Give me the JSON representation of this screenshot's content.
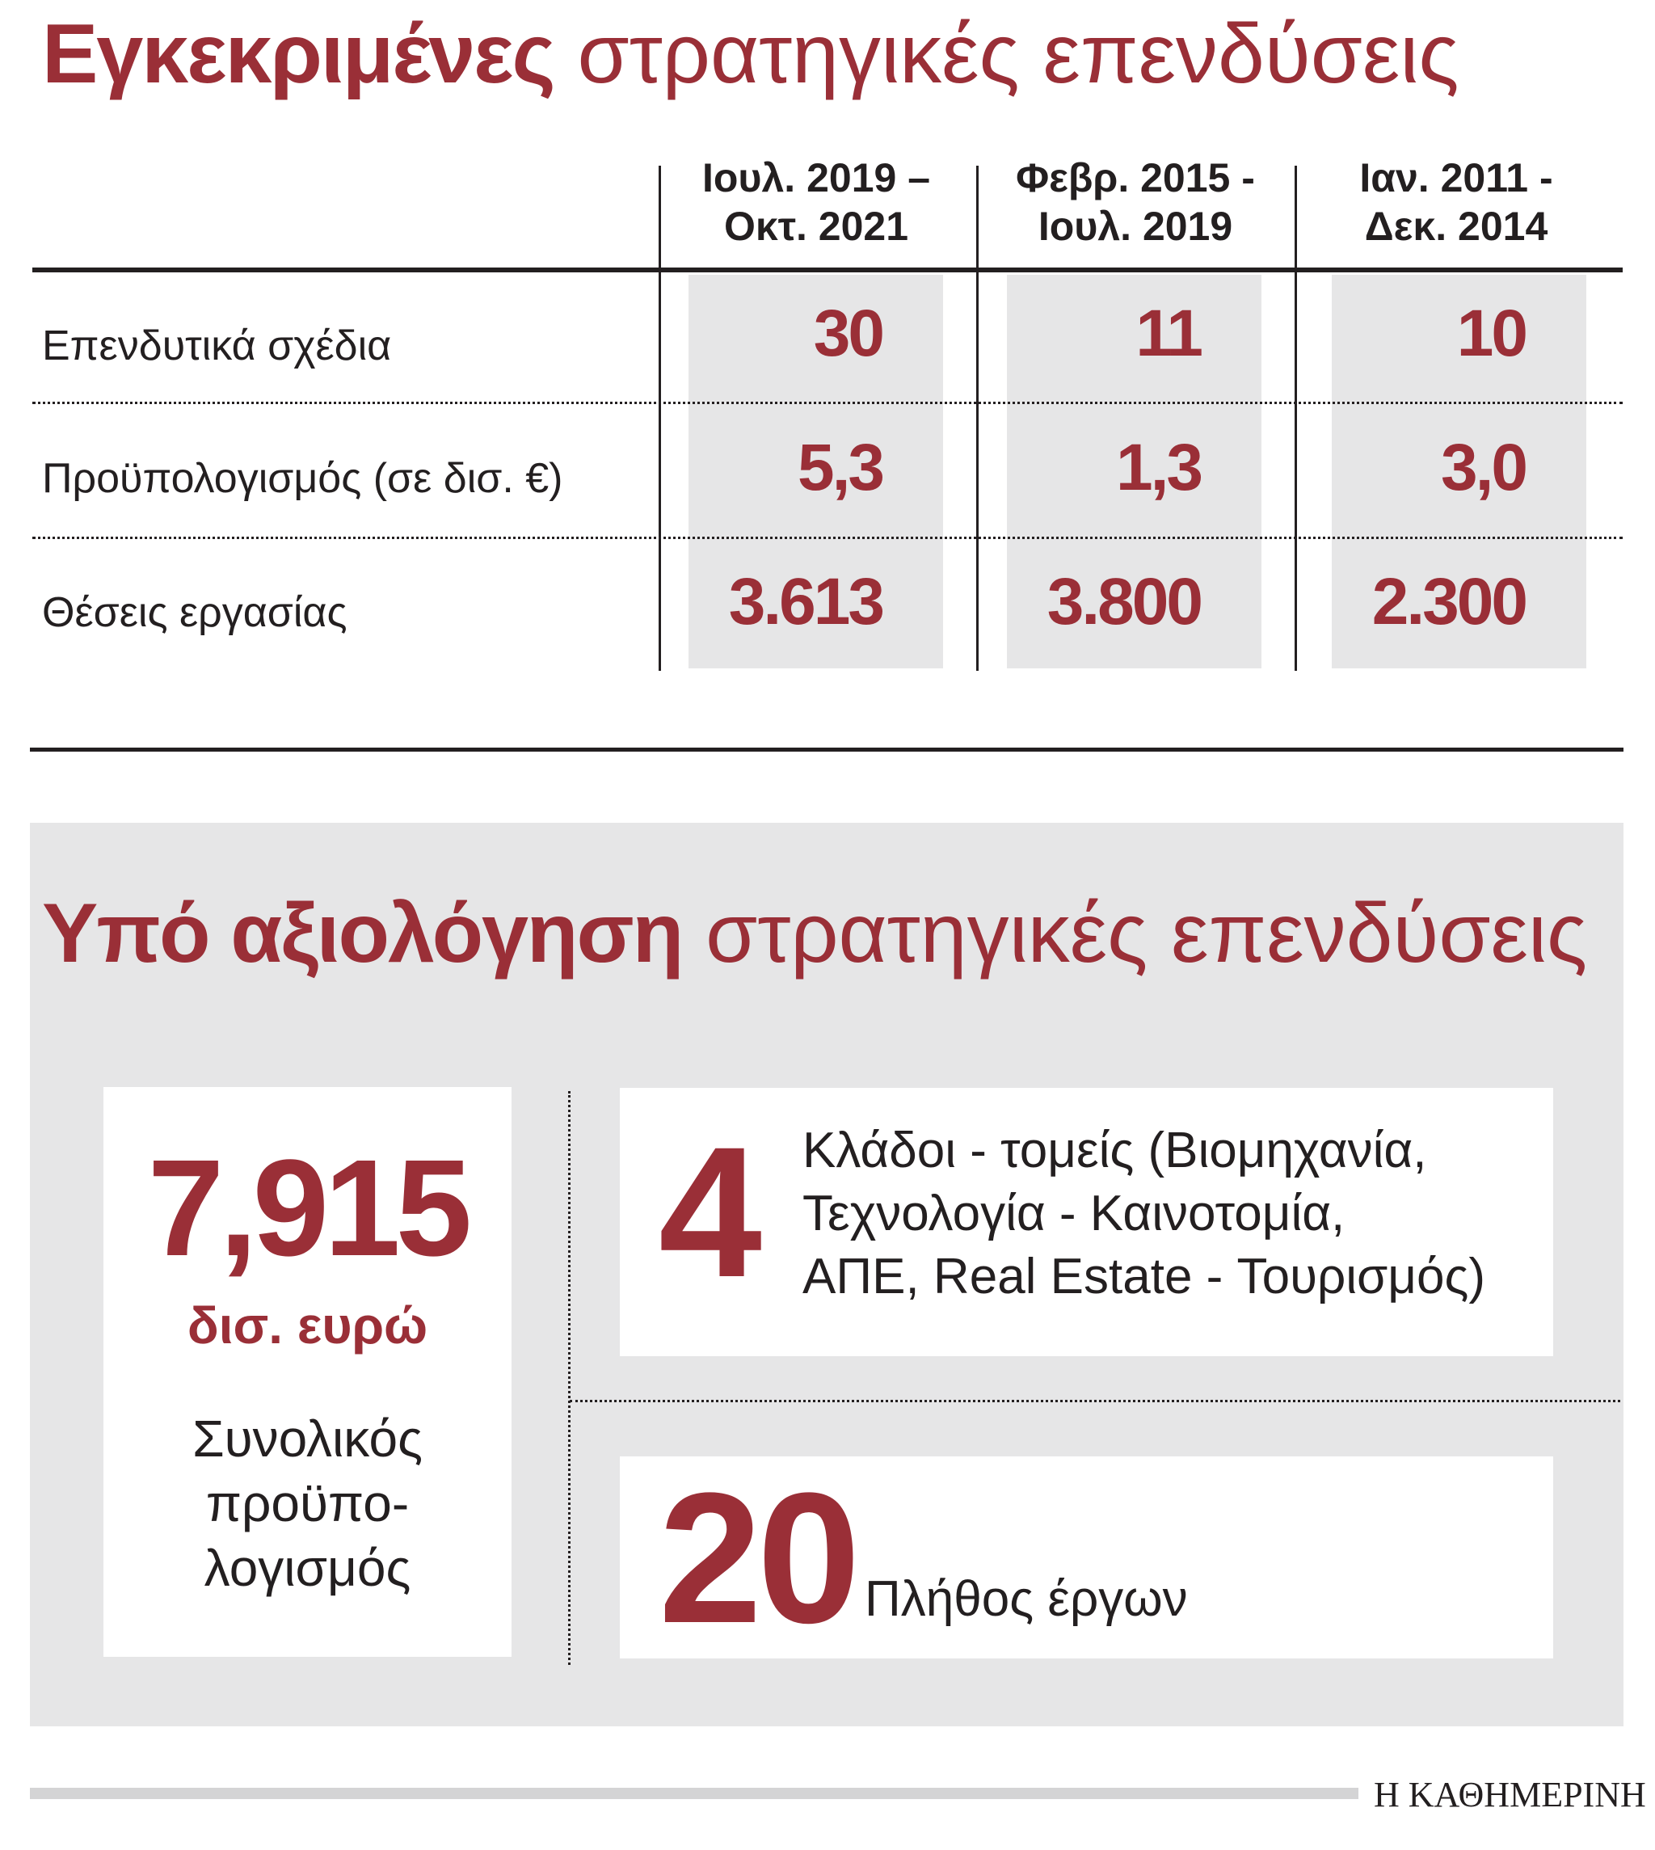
{
  "approved": {
    "title_bold": "Εγκεκριμένες",
    "title_rest": "στρατηγικές επενδύσεις",
    "columns": [
      {
        "line1": "Ιουλ. 2019 –",
        "line2": "Οκτ. 2021"
      },
      {
        "line1": "Φεβρ. 2015 -",
        "line2": "Ιουλ. 2019"
      },
      {
        "line1": "Ιαν. 2011 -",
        "line2": "Δεκ. 2014"
      }
    ],
    "rows": [
      {
        "label": "Επενδυτικά σχέδια",
        "values": [
          "30",
          "11",
          "10"
        ]
      },
      {
        "label": "Προϋπολογισμός (σε δισ. €)",
        "values": [
          "5,3",
          "1,3",
          "3,0"
        ]
      },
      {
        "label": "Θέσεις εργασίας",
        "values": [
          "3.613",
          "3.800",
          "2.300"
        ]
      }
    ]
  },
  "under_review": {
    "title_bold": "Υπό αξιολόγηση",
    "title_rest": "στρατηγικές επενδύσεις",
    "budget": {
      "value": "7,915",
      "unit": "δισ. ευρώ",
      "label_lines": [
        "Συνολικός",
        "προϋπο-",
        "λογισμός"
      ]
    },
    "sectors": {
      "value": "4",
      "desc_lines": [
        "Κλάδοι - τομείς (Βιομηχανία,",
        "Τεχνολογία - Καινοτομία,",
        "ΑΠΕ, Real Estate - Τουρισμός)"
      ]
    },
    "projects": {
      "value": "20",
      "desc": "Πλήθος έργων"
    }
  },
  "source_logo": "Η ΚΑΘΗΜΕΡΙΝΗ",
  "colors": {
    "accent": "#9a2f37",
    "shade": "#e6e6e7",
    "text": "#231f20"
  },
  "chart_data": {
    "type": "table",
    "title": "Εγκεκριμένες στρατηγικές επενδύσεις",
    "categories": [
      "Ιουλ. 2019 – Οκτ. 2021",
      "Φεβρ. 2015 - Ιουλ. 2019",
      "Ιαν. 2011 - Δεκ. 2014"
    ],
    "series": [
      {
        "name": "Επενδυτικά σχέδια",
        "values": [
          30,
          11,
          10
        ]
      },
      {
        "name": "Προϋπολογισμός (σε δισ. €)",
        "values": [
          5.3,
          1.3,
          3.0
        ]
      },
      {
        "name": "Θέσεις εργασίας",
        "values": [
          3613,
          3800,
          2300
        ]
      }
    ]
  }
}
